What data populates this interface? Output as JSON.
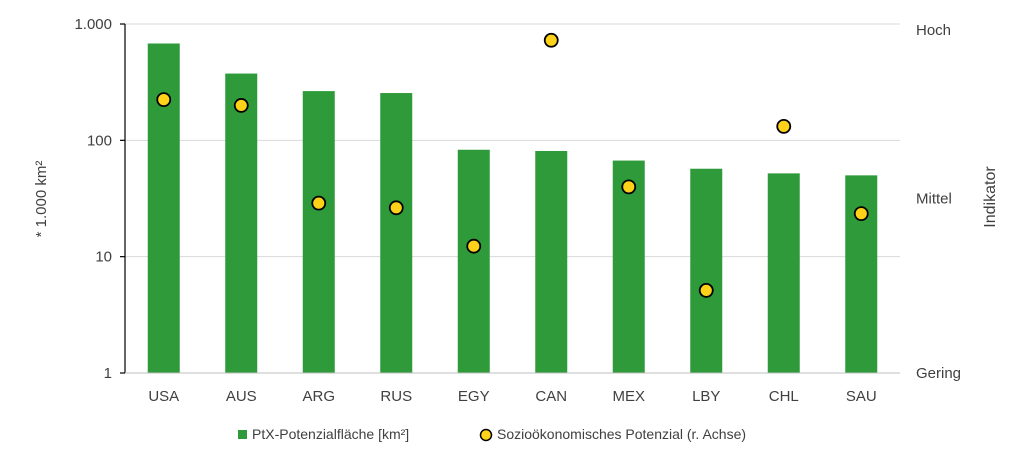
{
  "chart_data": {
    "type": "bar",
    "categories": [
      "USA",
      "AUS",
      "ARG",
      "RUS",
      "EGY",
      "CAN",
      "MEX",
      "LBY",
      "CHL",
      "SAU"
    ],
    "series": [
      {
        "name": "PtX-Potenzialfläche [km²]",
        "chart_type": "bar",
        "axis": "left",
        "color": "#2e9a3a",
        "values": [
          680,
          375,
          265,
          255,
          83,
          81,
          67,
          57,
          52,
          50
        ]
      },
      {
        "name": "Sozioökonomisches Potenzial (r. Achse)",
        "chart_type": "scatter",
        "axis": "right",
        "color": "#ffd21a",
        "values": [
          2.35,
          2.3,
          1.46,
          1.42,
          1.09,
          2.86,
          1.6,
          0.71,
          2.12,
          1.37
        ]
      }
    ],
    "y_left": {
      "label": "* 1.000 km²",
      "scale": "log",
      "ylim": [
        1,
        1000
      ],
      "ticks": [
        1,
        10,
        100,
        1000
      ],
      "tick_labels": [
        "1",
        "10",
        "100",
        "1.000"
      ]
    },
    "y_right": {
      "label": "Indikator",
      "ylim": [
        0,
        3
      ],
      "ticks": [
        0,
        1.5,
        3
      ],
      "tick_labels": [
        "Gering",
        "Mittel",
        "Hoch"
      ]
    },
    "grid": true,
    "legend": "bottom"
  }
}
